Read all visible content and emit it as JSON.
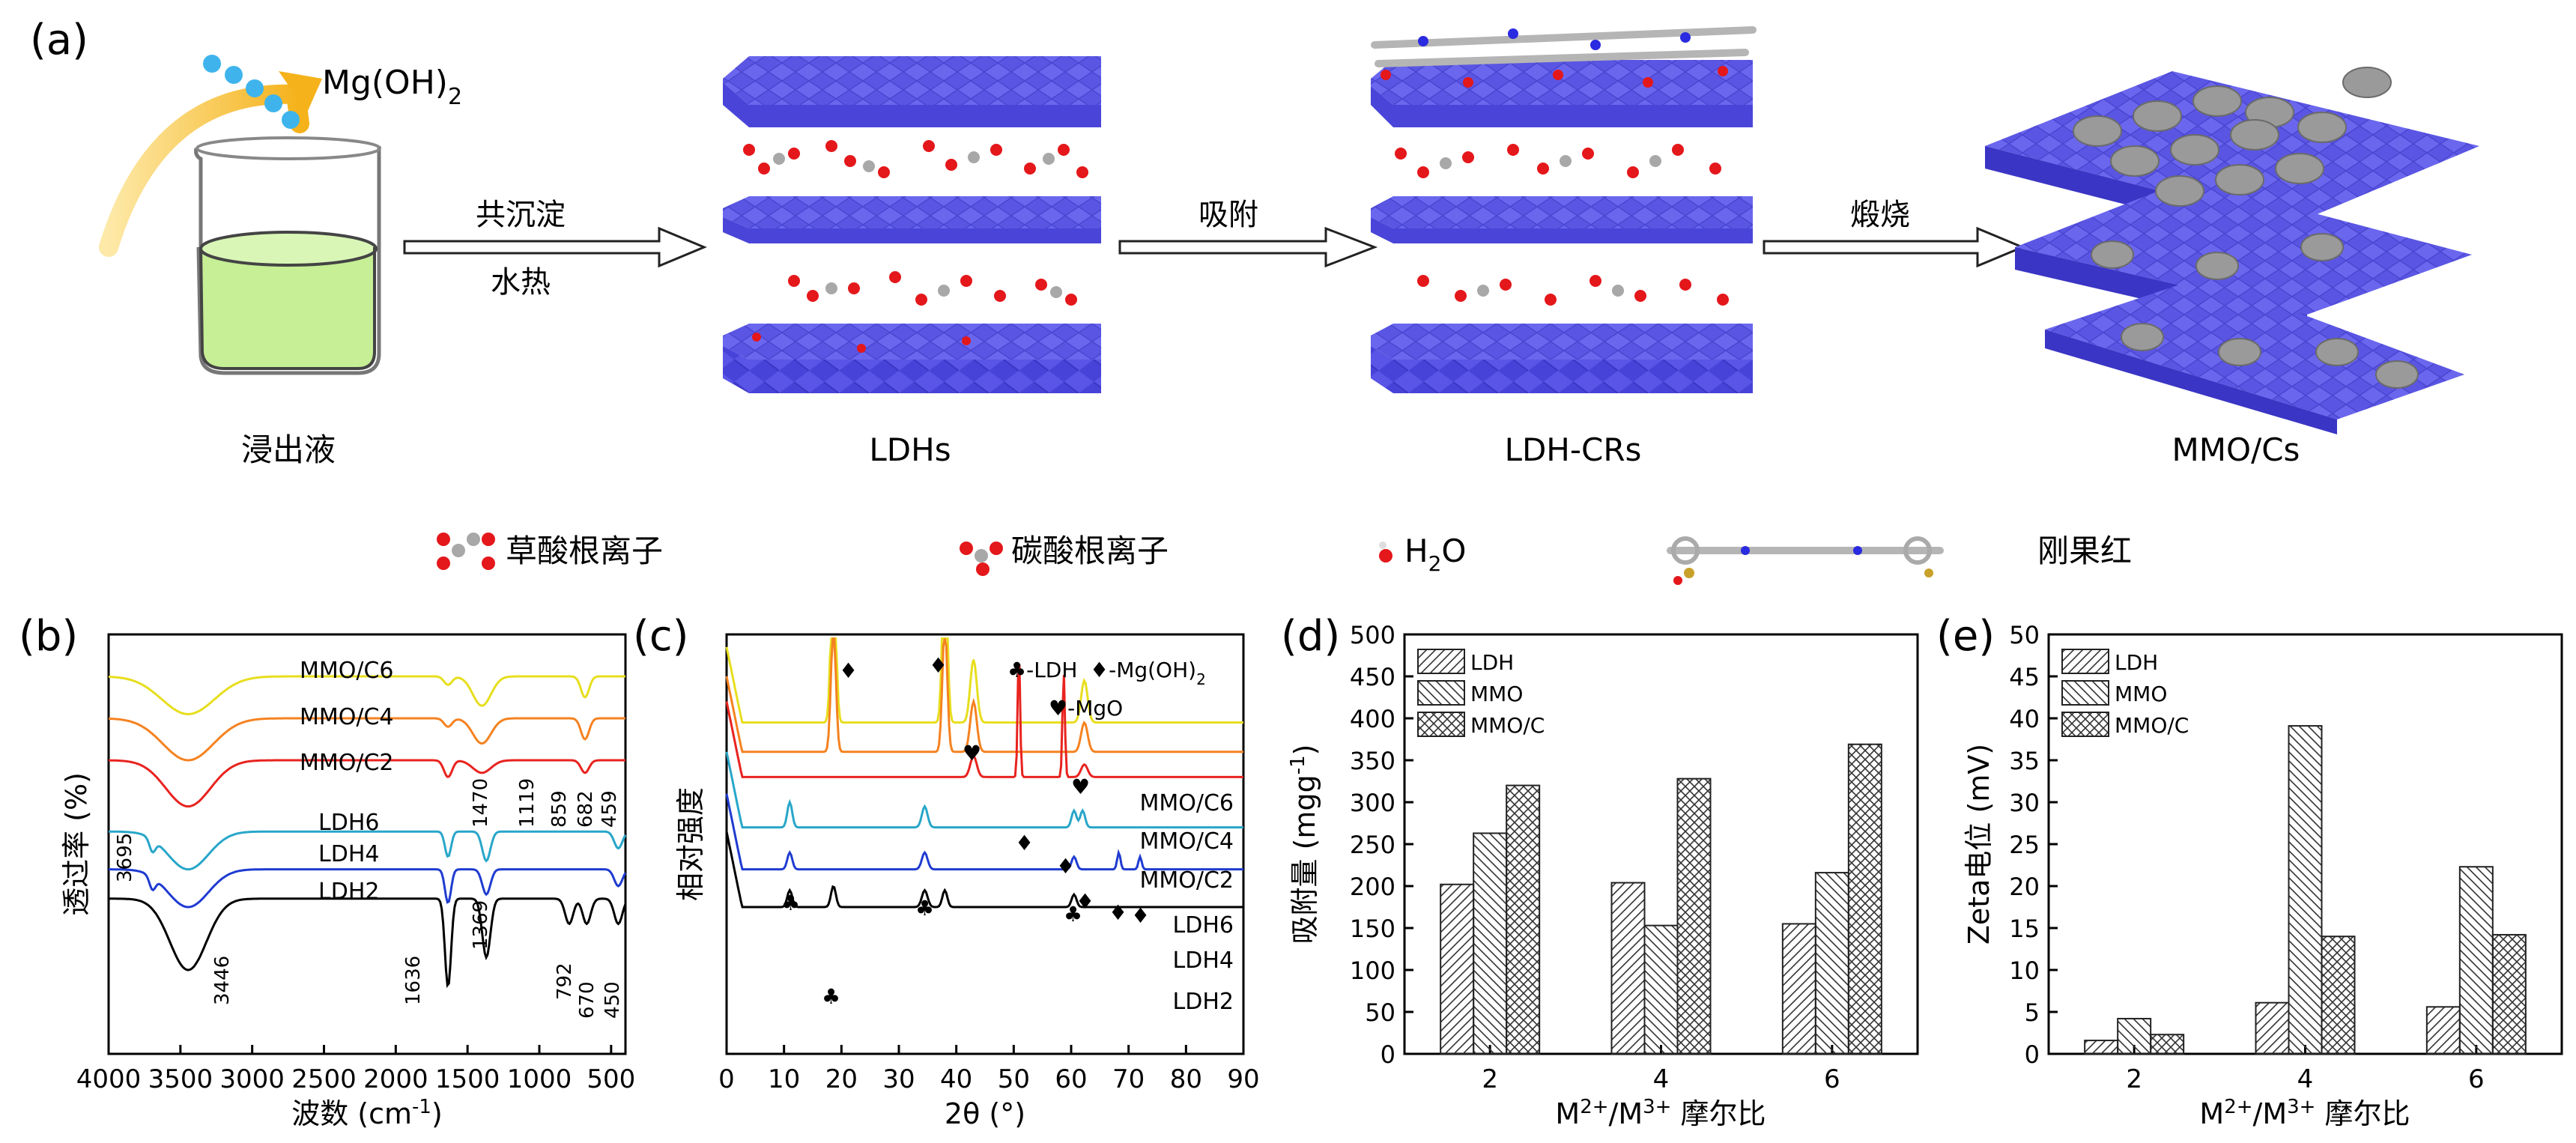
{
  "schematic": {
    "panel_label": "(a)",
    "mg_label": "Mg(OH)",
    "mg_sub": "2",
    "step1_line1": "共沉淀",
    "step1_line2": "水热",
    "step2": "吸附",
    "step3": "煅烧",
    "stages": [
      "浸出液",
      "LDHs",
      "LDH-CRs",
      "MMO/Cs"
    ],
    "legend": {
      "oxalate": "草酸根离子",
      "carbonate": "碳酸根离子",
      "water_main": "H",
      "water_sub": "2",
      "water_tail": "O",
      "congo_red": "刚果红"
    },
    "colors": {
      "layer": "#5a55e6",
      "solution": "#c6ef96",
      "arrow": "#f7c23c",
      "drop": "#3fb4ec",
      "oxygen": "#e4171b",
      "carbon": "#a8a8a8",
      "disc": "#9a9a9a"
    }
  },
  "chart_data": [
    {
      "panel": "(b)",
      "type": "line",
      "xlabel": "波数 (cm",
      "xlabel_sup": "-1",
      "xlabel_tail": ")",
      "ylabel": "透过率 (%)",
      "xlim": [
        4000,
        400
      ],
      "xticks": [
        4000,
        3500,
        3000,
        2500,
        2000,
        1500,
        1000,
        500
      ],
      "series": [
        {
          "name": "MMO/C6",
          "color": "#e7de1e",
          "baseline": 0.1,
          "dips": [
            [
              3446,
              260,
              0.09
            ],
            [
              1636,
              40,
              0.02
            ],
            [
              1400,
              90,
              0.07
            ],
            [
              682,
              40,
              0.05
            ]
          ]
        },
        {
          "name": "MMO/C4",
          "color": "#f58220",
          "baseline": 0.2,
          "dips": [
            [
              3446,
              250,
              0.1
            ],
            [
              1636,
              40,
              0.02
            ],
            [
              1400,
              90,
              0.06
            ],
            [
              682,
              40,
              0.05
            ]
          ]
        },
        {
          "name": "MMO/C2",
          "color": "#e8231f",
          "baseline": 0.3,
          "dips": [
            [
              3446,
              220,
              0.11
            ],
            [
              1636,
              40,
              0.04
            ],
            [
              1400,
              90,
              0.03
            ],
            [
              682,
              40,
              0.03
            ]
          ]
        },
        {
          "name": "LDH6",
          "color": "#28a6c9",
          "baseline": 0.47,
          "dips": [
            [
              3446,
              200,
              0.09
            ],
            [
              3695,
              30,
              0.03
            ],
            [
              1636,
              30,
              0.06
            ],
            [
              1369,
              40,
              0.07
            ],
            [
              450,
              40,
              0.04
            ]
          ]
        },
        {
          "name": "LDH4",
          "color": "#1f3bd1",
          "baseline": 0.56,
          "dips": [
            [
              3446,
              200,
              0.09
            ],
            [
              3695,
              30,
              0.03
            ],
            [
              1636,
              30,
              0.08
            ],
            [
              1369,
              40,
              0.06
            ],
            [
              450,
              40,
              0.04
            ]
          ]
        },
        {
          "name": "LDH2",
          "color": "#000000",
          "baseline": 0.63,
          "dips": [
            [
              3446,
              180,
              0.17
            ],
            [
              1636,
              30,
              0.21
            ],
            [
              1369,
              40,
              0.14
            ],
            [
              792,
              40,
              0.06
            ],
            [
              670,
              40,
              0.06
            ],
            [
              450,
              40,
              0.06
            ]
          ]
        }
      ],
      "annotations": [
        "3695",
        "3446",
        "1636",
        "1470",
        "1369",
        "1119",
        "859",
        "792",
        "682",
        "670",
        "459",
        "450"
      ]
    },
    {
      "panel": "(c)",
      "type": "line",
      "xlabel": "2θ (°)",
      "ylabel": "相对强度",
      "xlim": [
        0,
        90
      ],
      "xticks": [
        0,
        10,
        20,
        30,
        40,
        50,
        60,
        70,
        80,
        90
      ],
      "legend": {
        "ldh": "♣-LDH",
        "mgoh": "♦-Mg(OH)",
        "mgoh_sub": "2",
        "mgo": "♥-MgO"
      },
      "series": [
        {
          "name": "MMO/C6",
          "color": "#e7de1e",
          "baseline": 0.21,
          "peaks": [
            [
              18.6,
              0.6,
              0.42
            ],
            [
              38,
              0.6,
              0.42
            ],
            [
              43,
              0.8,
              0.15
            ],
            [
              62.3,
              0.8,
              0.1
            ]
          ]
        },
        {
          "name": "MMO/C4",
          "color": "#f58220",
          "baseline": 0.28,
          "peaks": [
            [
              18.6,
              0.6,
              0.3
            ],
            [
              38,
              0.6,
              0.3
            ],
            [
              43,
              0.8,
              0.12
            ],
            [
              62.3,
              0.8,
              0.07
            ]
          ]
        },
        {
          "name": "MMO/C2",
          "color": "#e8231f",
          "baseline": 0.34,
          "peaks": [
            [
              43,
              0.8,
              0.05
            ],
            [
              62.3,
              0.8,
              0.03
            ],
            [
              50.9,
              0.3,
              0.3
            ],
            [
              58.7,
              0.3,
              0.25
            ]
          ]
        },
        {
          "name": "LDH6",
          "color": "#28a6c9",
          "baseline": 0.46,
          "peaks": [
            [
              11,
              0.6,
              0.06
            ],
            [
              34.5,
              0.7,
              0.05
            ],
            [
              60.5,
              0.6,
              0.04
            ],
            [
              62,
              0.6,
              0.04
            ]
          ]
        },
        {
          "name": "LDH4",
          "color": "#1f3bd1",
          "baseline": 0.56,
          "peaks": [
            [
              11,
              0.6,
              0.04
            ],
            [
              34.5,
              0.7,
              0.04
            ],
            [
              60.5,
              0.6,
              0.03
            ],
            [
              68.3,
              0.4,
              0.04
            ],
            [
              72,
              0.4,
              0.03
            ]
          ]
        },
        {
          "name": "LDH2",
          "color": "#000000",
          "baseline": 0.65,
          "peaks": [
            [
              11,
              0.6,
              0.04
            ],
            [
              18.6,
              0.6,
              0.05
            ],
            [
              34.5,
              0.7,
              0.04
            ],
            [
              38,
              0.6,
              0.04
            ],
            [
              60.5,
              0.6,
              0.03
            ]
          ]
        }
      ]
    },
    {
      "panel": "(d)",
      "type": "bar",
      "xlabel": "M",
      "xlabel_sup1": "2+",
      "xlabel_mid": "/M",
      "xlabel_sup2": "3+",
      "xlabel_tail": " 摩尔比",
      "ylabel": "吸附量 (mgg",
      "ylabel_sup": "-1",
      "ylabel_tail": ")",
      "ylim": [
        0,
        500
      ],
      "yticks": [
        0,
        50,
        100,
        150,
        200,
        250,
        300,
        350,
        400,
        450,
        500
      ],
      "categories": [
        "2",
        "4",
        "6"
      ],
      "series": [
        {
          "name": "LDH",
          "values": [
            202,
            204,
            155
          ]
        },
        {
          "name": "MMO",
          "values": [
            263,
            153,
            216
          ]
        },
        {
          "name": "MMO/C",
          "values": [
            320,
            328,
            369
          ]
        }
      ]
    },
    {
      "panel": "(e)",
      "type": "bar",
      "xlabel": "M",
      "xlabel_sup1": "2+",
      "xlabel_mid": "/M",
      "xlabel_sup2": "3+",
      "xlabel_tail": " 摩尔比",
      "ylabel": "Zeta电位 (mV)",
      "ylim": [
        0,
        50
      ],
      "yticks": [
        0,
        5,
        10,
        15,
        20,
        25,
        30,
        35,
        40,
        45,
        50
      ],
      "categories": [
        "2",
        "4",
        "6"
      ],
      "series": [
        {
          "name": "LDH",
          "values": [
            1.6,
            6.1,
            5.6
          ]
        },
        {
          "name": "MMO",
          "values": [
            4.2,
            39.1,
            22.3
          ]
        },
        {
          "name": "MMO/C",
          "values": [
            2.3,
            14,
            14.2
          ]
        }
      ]
    }
  ]
}
